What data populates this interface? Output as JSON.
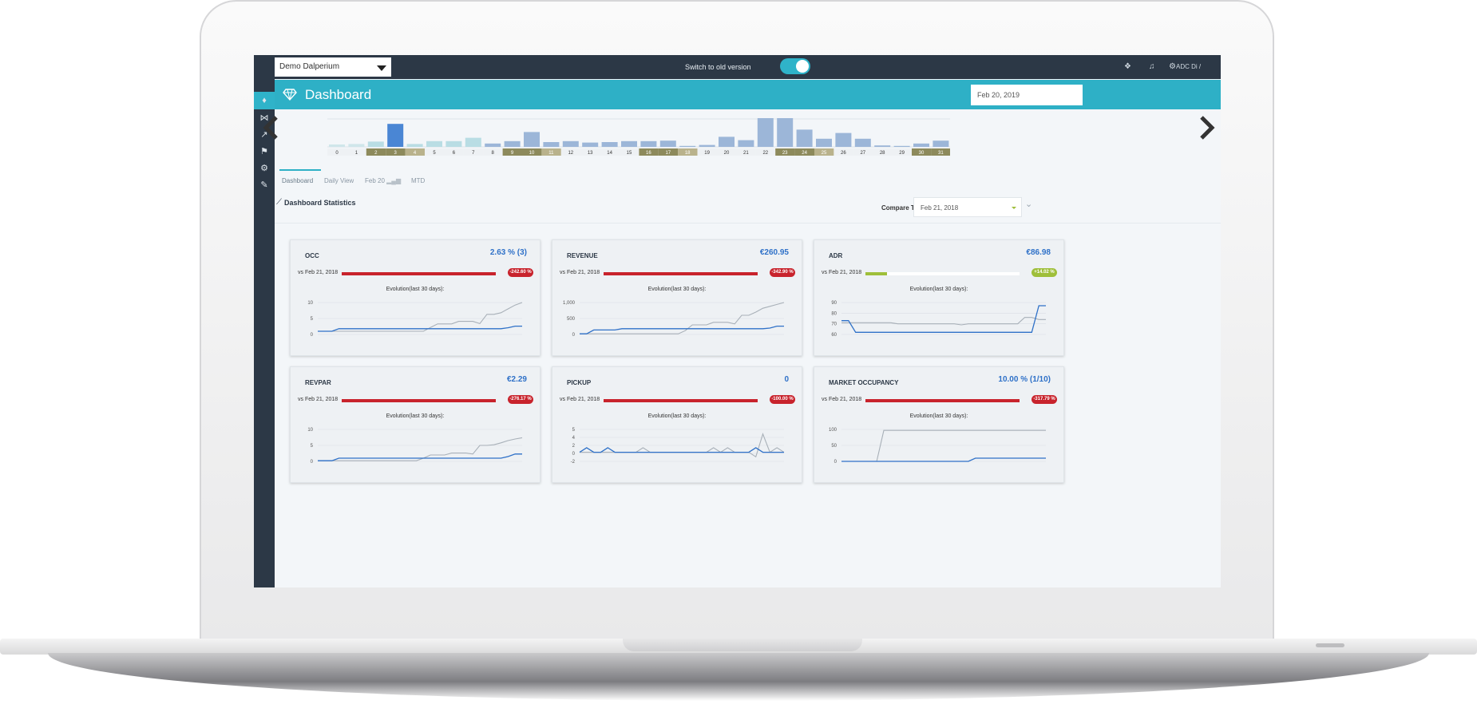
{
  "app": {
    "property_select": "Demo Dalperium",
    "switch_label": "Switch to old version",
    "user_label": "ADC Di / Exilons",
    "header_title": "Dashboard",
    "header_date": "Feb 20, 2019",
    "compare_label": "Compare To:",
    "compare_date": "Feb 21, 2018",
    "stats_title": "Dashboard Statistics",
    "accent": "#2eb0c6",
    "sidebar_color": "#2c3846"
  },
  "tabs": [
    {
      "label": "Dashboard"
    },
    {
      "label": "Daily View"
    },
    {
      "label": "Feb 20"
    },
    {
      "label": "MTD"
    }
  ],
  "icons": {
    "sidebar": [
      "diamond-icon",
      "bed-icon",
      "trend-icon",
      "flag-icon",
      "gear-icon",
      "wrench-icon"
    ],
    "topbar": [
      "layers-icon",
      "bell-icon",
      "settings-icon"
    ]
  },
  "calendar_strip": {
    "days": [
      "0",
      "1",
      "2",
      "3",
      "4",
      "5",
      "6",
      "7",
      "8",
      "9",
      "10",
      "11",
      "12",
      "13",
      "14",
      "15",
      "16",
      "17",
      "18",
      "19",
      "20",
      "21",
      "22",
      "23",
      "24",
      "25",
      "26",
      "27",
      "28",
      "29",
      "30",
      "31"
    ],
    "weekend_days": [
      "2",
      "3",
      "4",
      "9",
      "10",
      "11",
      "16",
      "17",
      "18",
      "23",
      "24",
      "25",
      "30",
      "31"
    ],
    "occupancy": [
      0.5,
      0.6,
      1.1,
      4.8,
      0.6,
      1.2,
      1.2,
      1.9,
      0.7,
      1.2,
      3.1,
      1.0,
      1.2,
      0.9,
      1.0,
      1.2,
      1.2,
      1.3,
      0.2,
      0.4,
      2.1,
      1.4,
      6.0,
      6.0,
      3.6,
      1.7,
      2.9,
      1.7,
      0.3,
      0.2,
      0.7,
      1.3
    ],
    "selected_index": 3
  },
  "cards": [
    {
      "id": "occ",
      "title": "OCC",
      "value": "2.63 % (3)",
      "vs": "vs Feb 21, 2018",
      "bar_fraction": 1.0,
      "bar_color": "#c8232c",
      "badge": "-242.60 %",
      "badge_color": "#c8232c",
      "evo": "Evolution(last 30 days):",
      "yticks": [
        "10",
        "5",
        "0"
      ],
      "ymax": 10,
      "series_current": [
        1,
        1,
        1,
        1.8,
        1.8,
        1.8,
        1.8,
        1.8,
        1.8,
        1.8,
        1.8,
        1.8,
        1.8,
        1.8,
        1.8,
        1.8,
        1.8,
        1.8,
        1.8,
        1.8,
        1.8,
        1.8,
        1.8,
        1.8,
        1.8,
        1.8,
        1.8,
        2.1,
        2.6,
        2.6
      ],
      "series_compare": [
        1,
        1,
        1,
        1,
        1,
        1,
        1,
        1,
        1,
        1,
        1,
        1,
        1,
        1,
        1,
        1,
        2.2,
        3.3,
        3.3,
        3.3,
        4.1,
        4.1,
        4.1,
        3.4,
        6.3,
        6.3,
        6.8,
        8,
        9.2,
        10
      ]
    },
    {
      "id": "revenue",
      "title": "REVENUE",
      "value": "€260.95",
      "vs": "vs Feb 21, 2018",
      "bar_fraction": 1.0,
      "bar_color": "#c8232c",
      "badge": "-342.90 %",
      "badge_color": "#c8232c",
      "evo": "Evolution(last 30 days):",
      "yticks": [
        "1,000",
        "500",
        "0"
      ],
      "ymax": 1000,
      "series_current": [
        20,
        20,
        140,
        140,
        140,
        140,
        180,
        180,
        180,
        180,
        180,
        180,
        180,
        180,
        180,
        180,
        180,
        180,
        180,
        180,
        180,
        180,
        180,
        180,
        180,
        180,
        180,
        200,
        260,
        260
      ],
      "series_compare": [
        20,
        20,
        20,
        20,
        20,
        20,
        20,
        20,
        20,
        20,
        20,
        20,
        20,
        20,
        20,
        120,
        300,
        300,
        300,
        380,
        380,
        380,
        330,
        600,
        600,
        700,
        820,
        880,
        940,
        1000
      ]
    },
    {
      "id": "adr",
      "title": "ADR",
      "value": "€86.98",
      "vs": "vs Feb 21, 2018",
      "bar_fraction": 0.14,
      "bar_color": "#9fbf3a",
      "badge": "+14.02 %",
      "badge_color": "#9fbf3a",
      "evo": "Evolution(last 30 days):",
      "yticks": [
        "90",
        "80",
        "70",
        "60"
      ],
      "ymin": 60,
      "ymax": 90,
      "series_current": [
        73,
        73,
        62,
        62,
        62,
        62,
        62,
        62,
        62,
        62,
        62,
        62,
        62,
        62,
        62,
        62,
        62,
        62,
        62,
        62,
        62,
        62,
        62,
        62,
        62,
        62,
        62,
        62,
        87,
        87
      ],
      "series_compare": [
        71,
        71,
        71,
        71,
        71,
        71,
        71,
        71,
        70,
        70,
        70,
        70,
        70,
        70,
        70,
        70,
        70,
        69,
        70,
        70,
        70,
        70,
        70,
        70,
        70,
        70,
        76,
        76,
        74,
        74
      ]
    },
    {
      "id": "revpar",
      "title": "REVPAR",
      "value": "€2.29",
      "vs": "vs Feb 21, 2018",
      "bar_fraction": 1.0,
      "bar_color": "#c8232c",
      "badge": "-276.17 %",
      "badge_color": "#c8232c",
      "evo": "Evolution(last 30 days):",
      "yticks": [
        "10",
        "5",
        "0"
      ],
      "ymax": 10,
      "series_current": [
        0.2,
        0.2,
        0.2,
        1,
        1,
        1,
        1,
        1,
        1,
        1,
        1,
        1,
        1,
        1,
        1,
        1,
        1,
        1,
        1,
        1,
        1,
        1,
        1,
        1,
        1,
        1,
        1,
        1.5,
        2.3,
        2.3
      ],
      "series_compare": [
        0.2,
        0.2,
        0.2,
        0.2,
        0.2,
        0.2,
        0.2,
        0.2,
        0.2,
        0.2,
        0.2,
        0.2,
        0.2,
        0.2,
        0.2,
        1,
        2,
        2,
        2,
        2.6,
        2.6,
        2.6,
        2.3,
        5,
        5,
        5.2,
        5.8,
        6.5,
        7,
        7.4
      ]
    },
    {
      "id": "pickup",
      "title": "PICKUP",
      "value": "0",
      "vs": "vs Feb 21, 2018",
      "bar_fraction": 1.0,
      "bar_color": "#c8232c",
      "badge": "-100.00 %",
      "badge_color": "#c8232c",
      "evo": "Evolution(last 30 days):",
      "yticks": [
        "5",
        "4",
        "2",
        "0",
        "-2"
      ],
      "ymin": -2,
      "ymax": 5,
      "series_current": [
        0,
        1,
        0,
        0,
        1,
        0,
        0,
        0,
        0,
        0,
        0,
        0,
        0,
        0,
        0,
        0,
        0,
        0,
        0,
        0,
        0,
        0,
        0,
        0,
        0,
        1,
        0,
        0,
        0,
        0
      ],
      "series_compare": [
        0,
        0,
        0,
        0,
        0,
        0,
        0,
        0,
        0,
        1,
        0,
        0,
        0,
        0,
        0,
        0,
        0,
        0,
        0,
        1,
        0,
        1,
        0,
        0,
        0,
        -1,
        4,
        0,
        1,
        0
      ]
    },
    {
      "id": "market",
      "title": "MARKET OCCUPANCY",
      "value": "10.00 % (1/10)",
      "vs": "vs Feb 21, 2018",
      "bar_fraction": 1.0,
      "bar_color": "#c8232c",
      "badge": "-317.79 %",
      "badge_color": "#c8232c",
      "evo": "Evolution(last 30 days):",
      "yticks": [
        "100",
        "50",
        "0"
      ],
      "ymax": 100,
      "series_current": [
        0,
        0,
        0,
        0,
        0,
        0,
        0,
        0,
        0,
        0,
        0,
        0,
        0,
        0,
        0,
        0,
        0,
        0,
        0,
        10,
        10,
        10,
        10,
        10,
        10,
        10,
        10,
        10,
        10,
        10
      ],
      "series_compare": [
        0,
        0,
        0,
        0,
        0,
        0,
        97,
        97,
        97,
        97,
        97,
        97,
        97,
        97,
        97,
        97,
        97,
        97,
        97,
        97,
        97,
        97,
        97,
        97,
        97,
        97,
        97,
        97,
        97,
        97
      ]
    }
  ]
}
